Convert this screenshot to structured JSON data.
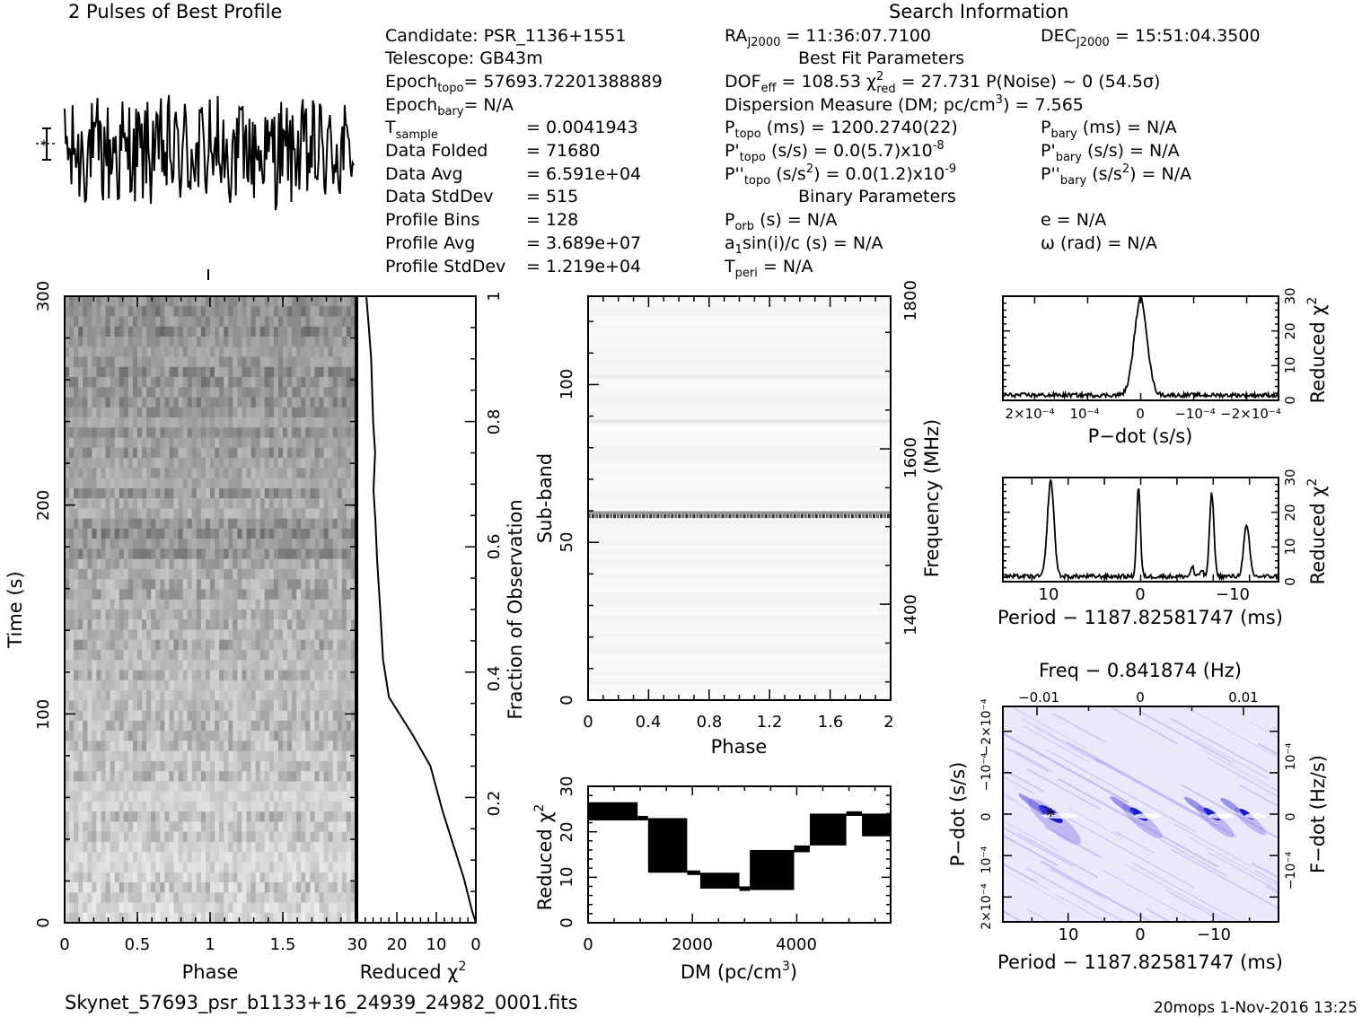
{
  "header": {
    "profile_title": "2 Pulses of Best Profile",
    "search_title": "Search Information",
    "best_fit_title": "Best Fit Parameters",
    "binary_title": "Binary Parameters"
  },
  "info": {
    "candidate": "Candidate:  PSR_1136+1551",
    "telescope": "Telescope:  GB43m",
    "epoch_topo_main": "Epoch",
    "epoch_topo_sub": "topo",
    "epoch_topo_val": "= 57693.72201388889",
    "epoch_bary_main": "Epoch",
    "epoch_bary_sub": "bary",
    "epoch_bary_val": "= N/A",
    "tsample_main": "T",
    "tsample_sub": "sample",
    "tsample_val": "=  0.0041943",
    "data_folded": "Data Folded",
    "data_folded_val": "=  71680",
    "data_avg": "Data Avg",
    "data_avg_val": "=  6.591e+04",
    "data_stddev": "Data StdDev",
    "data_stddev_val": "=  515",
    "profile_bins": "Profile Bins",
    "profile_bins_val": "=  128",
    "profile_avg": "Profile Avg",
    "profile_avg_val": "=  3.689e+07",
    "profile_stddev": "Profile StdDev",
    "profile_stddev_val": "=  1.219e+04",
    "ra_main": "RA",
    "ra_sub": "J2000",
    "ra_val": " = 11:36:07.7100",
    "dec_main": "DEC",
    "dec_sub": "J2000",
    "dec_val": " = 15:51:04.3500",
    "dof_main": "DOF",
    "dof_sub": "eff",
    "dof_val": " = 108.53  χ",
    "chi_sup": "2",
    "chi_sub": "red",
    "chi_val": " = 27.731  P(Noise) ~ 0   (54.5σ)",
    "dm_line": "Dispersion Measure (DM; pc/cm",
    "dm_sup": "3",
    "dm_val": ") = 7.565",
    "ptopo_main": "P",
    "ptopo_sub": "topo",
    "ptopo_val": " (ms) =  1200.2740(22)",
    "pbary_main": "P",
    "pbary_sub": "bary",
    "pbary_val": " (ms) = N/A",
    "pdtopo_main": "P'",
    "pdtopo_sub": "topo",
    "pdtopo_val": " (s/s) = 0.0(5.7)x10",
    "pdtopo_exp": "-8",
    "pdbary_main": "P'",
    "pdbary_sub": "bary",
    "pdbary_val": " (s/s) = N/A",
    "pddtopo_main": "P''",
    "pddtopo_sub": "topo",
    "pddtopo_val": " (s/s",
    "pddtopo_sup": "2",
    "pddtopo_val2": ") = 0.0(1.2)x10",
    "pddtopo_exp": "-9",
    "pddbary_main": "P''",
    "pddbary_sub": "bary",
    "pddbary_val": " (s/s",
    "pddbary_sup": "2",
    "pddbary_val2": ") = N/A",
    "porb_main": "P",
    "porb_sub": "orb",
    "porb_val": " (s) = N/A",
    "e_val": "e = N/A",
    "a1_main": "a",
    "a1_sub": "1",
    "a1_val": "sin(i)/c (s) = N/A",
    "omega_val": "ω (rad) = N/A",
    "tperi_main": "T",
    "tperi_sub": "peri",
    "tperi_val": " = N/A"
  },
  "footer": {
    "filename": "Skynet_57693_psr_b1133+16_24939_24982_0001.fits",
    "stamp": "20mops  1-Nov-2016 13:25"
  },
  "colors": {
    "ink": "#000000",
    "ppdot_base": "#ece8fb",
    "ppdot_peak": "#1a1acc",
    "ppdot_marker": "#10c060"
  },
  "chart_data": [
    {
      "type": "line",
      "id": "pulse-profile",
      "title": "2 Pulses of Best Profile",
      "x_range": [
        0,
        2
      ],
      "bins_per_pulse": 128,
      "shape": "noisy, no clear pulse",
      "error_bar": true
    },
    {
      "type": "heatmap",
      "id": "time-vs-phase",
      "xlabel": "Phase",
      "ylabel": "Time (s)",
      "x_ticks": [
        "0",
        "0.5",
        "1",
        "1.5"
      ],
      "y_ticks": [
        "0",
        "100",
        "200",
        "300"
      ],
      "xlim": [
        0,
        2
      ],
      "ylim": [
        0,
        300
      ],
      "colormap": "grayscale"
    },
    {
      "type": "line",
      "id": "chi2-vs-time",
      "xlabel": "Reduced χ",
      "xlabel_sup": "2",
      "x_ticks": [
        "30",
        "20",
        "10",
        "0"
      ],
      "right_label": "Fraction of Observation",
      "right_ticks": [
        "0.2",
        "0.4",
        "0.6",
        "0.8",
        "1"
      ],
      "xlim": [
        30,
        0
      ],
      "ylim": [
        0,
        1
      ],
      "points": [
        [
          0,
          0
        ],
        [
          1.0,
          0.02
        ],
        [
          3,
          0.07
        ],
        [
          6.5,
          0.14
        ],
        [
          8.5,
          0.18
        ],
        [
          11.5,
          0.25
        ],
        [
          16,
          0.3
        ],
        [
          20,
          0.34
        ],
        [
          22,
          0.36
        ],
        [
          23.5,
          0.42
        ],
        [
          24.2,
          0.5
        ],
        [
          25,
          0.58
        ],
        [
          25.4,
          0.64
        ],
        [
          25.9,
          0.69
        ],
        [
          25.5,
          0.75
        ],
        [
          26,
          0.8
        ],
        [
          26.5,
          0.9
        ],
        [
          27.2,
          0.96
        ],
        [
          27.731,
          1.0
        ]
      ]
    },
    {
      "type": "heatmap",
      "id": "subband-vs-phase",
      "xlabel": "Phase",
      "ylabel": "Sub-band",
      "right_label": "Frequency (MHz)",
      "x_ticks": [
        "0",
        "0.4",
        "0.8",
        "1.2",
        "1.6",
        "2"
      ],
      "y_ticks": [
        "0",
        "50",
        "100"
      ],
      "right_ticks": [
        "1400",
        "1600",
        "1800"
      ],
      "xlim": [
        0,
        2
      ],
      "ylim": [
        0,
        128
      ],
      "rfi_subband": 58
    },
    {
      "type": "line",
      "id": "chi2-vs-dm",
      "xlabel": "DM (pc/cm",
      "xlabel_sup": "3",
      "ylabel": "Reduced χ",
      "ylabel_sup": "2",
      "x_ticks": [
        "0",
        "2000",
        "4000"
      ],
      "y_ticks": [
        "0",
        "10",
        "20",
        "30"
      ],
      "xlim": [
        0,
        5800
      ],
      "ylim": [
        0,
        30
      ],
      "bands": [
        [
          0,
          950,
          22.5,
          26.5
        ],
        [
          950,
          1150,
          22.5,
          23.5
        ],
        [
          1150,
          1900,
          11,
          23
        ],
        [
          1900,
          2150,
          10.5,
          11.5
        ],
        [
          2150,
          2900,
          7.5,
          11
        ],
        [
          2900,
          3100,
          7,
          8
        ],
        [
          3100,
          3950,
          7.2,
          16
        ],
        [
          3950,
          4250,
          15.5,
          17
        ],
        [
          4250,
          4950,
          17,
          24
        ],
        [
          4950,
          5250,
          23.5,
          24.5
        ],
        [
          5250,
          5800,
          19,
          24
        ]
      ]
    },
    {
      "type": "line",
      "id": "chi2-vs-pdot",
      "xlabel": "P−dot (s/s)",
      "right_label": "Reduced χ",
      "right_label_sup": "2",
      "x_ticks": [
        "2×10⁻⁴",
        "10⁻⁴",
        "0",
        "−10⁻⁴",
        "−2×10⁻⁴"
      ],
      "right_ticks": [
        "0",
        "10",
        "20",
        "30"
      ],
      "xlim": [
        0.00026,
        -0.00026
      ],
      "ylim": [
        0,
        30
      ],
      "baseline": 1.5,
      "peaks": [
        {
          "x": 0,
          "height": 27.7,
          "width": 1.2e-05
        }
      ]
    },
    {
      "type": "line",
      "id": "chi2-vs-period",
      "xlabel": "Period − 1187.82581747 (ms)",
      "right_label": "Reduced χ",
      "right_label_sup": "2",
      "x_ticks": [
        "10",
        "0",
        "−10"
      ],
      "right_ticks": [
        "0",
        "10",
        "20",
        "30"
      ],
      "xlim": [
        19,
        -19
      ],
      "ylim": [
        0,
        30
      ],
      "baseline": 1.5,
      "peaks": [
        {
          "x": 12.4,
          "height": 27.7,
          "width": 0.45
        },
        {
          "x": 0.3,
          "height": 26,
          "width": 0.25
        },
        {
          "x": -7.1,
          "height": 3,
          "width": 0.2
        },
        {
          "x": -8.4,
          "height": 2,
          "width": 0.2
        },
        {
          "x": -9.8,
          "height": 24,
          "width": 0.3
        },
        {
          "x": -14.6,
          "height": 14.5,
          "width": 0.4
        }
      ]
    },
    {
      "type": "heatmap",
      "id": "ppdot-plane",
      "title": "Freq − 0.841874 (Hz)",
      "xlabel": "Period − 1187.82581747 (ms)",
      "ylabel": "P−dot (s/s)",
      "right_label": "F−dot (Hz/s)",
      "x_ticks": [
        "10",
        "0",
        "−10"
      ],
      "top_ticks": [
        "−0.01",
        "0",
        "0.01"
      ],
      "left_ticks": [
        "2×10⁻⁴",
        "10⁻⁴",
        "0",
        "−10⁻⁴",
        "−2×10⁻⁴"
      ],
      "right_ticks": [
        "−10⁻⁴",
        "0",
        "10⁻⁴"
      ],
      "xlim": [
        19,
        -19
      ],
      "ylim": [
        -0.00026,
        0.00026
      ],
      "hotspots": [
        {
          "x": 12.4,
          "y": 0.0,
          "strength": 1.0
        },
        {
          "x": 0.3,
          "y": 0.0,
          "strength": 0.75
        },
        {
          "x": -9.8,
          "y": 0.0,
          "strength": 0.7
        },
        {
          "x": -14.6,
          "y": 0.0,
          "strength": 0.6
        }
      ],
      "best": {
        "x": 12.4,
        "y": 0.0
      }
    }
  ]
}
